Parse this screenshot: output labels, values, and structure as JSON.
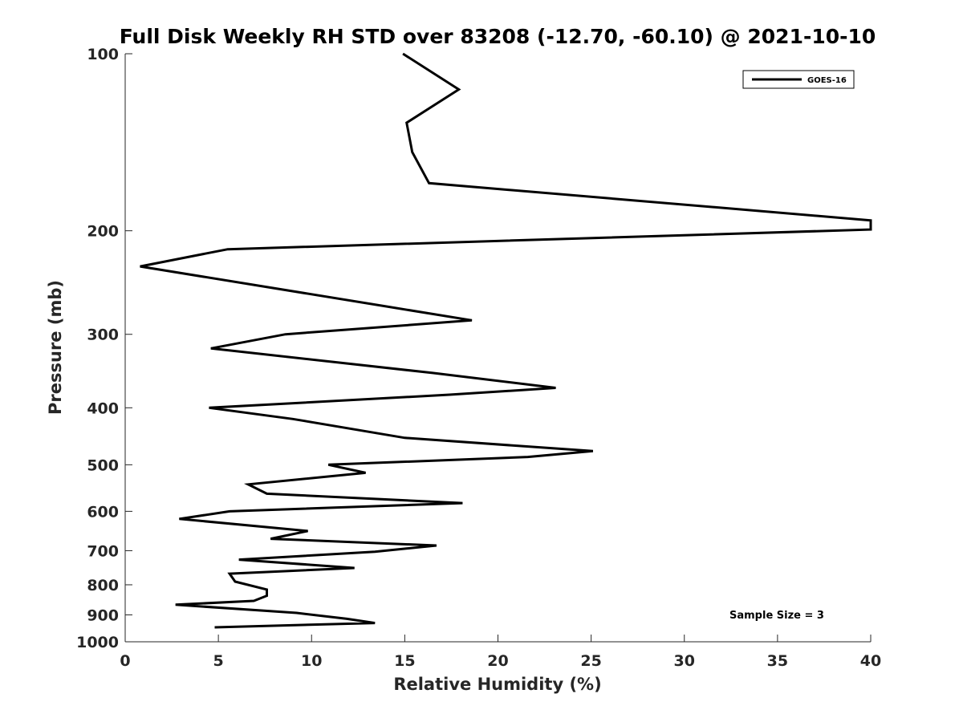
{
  "chart_data": {
    "type": "line",
    "title": "Full Disk Weekly RH STD over 83208 (-12.70, -60.10) @ 2021-10-10",
    "xlabel": "Relative Humidity (%)",
    "ylabel": "Pressure (mb)",
    "xlim": [
      0,
      40
    ],
    "ylim": [
      100,
      1000
    ],
    "y_scale": "log",
    "y_reversed": true,
    "x_ticks": [
      0,
      5,
      10,
      15,
      20,
      25,
      30,
      35,
      40
    ],
    "y_ticks": [
      100,
      200,
      300,
      400,
      500,
      600,
      700,
      800,
      900,
      1000
    ],
    "grid": false,
    "legend_position": "top-right",
    "annotation": "Sample Size = 3",
    "series": [
      {
        "name": "GOES-16",
        "color": "#000000",
        "x": [
          14.9,
          17.9,
          15.1,
          15.4,
          16.3,
          40.0,
          40.0,
          5.5,
          0.8,
          18.6,
          8.6,
          4.6,
          16.5,
          23.1,
          17.4,
          4.5,
          9.0,
          15.0,
          25.1,
          21.6,
          10.9,
          12.9,
          6.6,
          7.6,
          18.1,
          5.6,
          2.9,
          9.8,
          7.8,
          16.7,
          13.4,
          6.1,
          12.3,
          5.6,
          5.9,
          7.6,
          7.6,
          6.9,
          2.7,
          9.2,
          11.9,
          13.4,
          4.8
        ],
        "y": [
          100,
          115,
          131,
          147,
          166,
          192,
          199,
          215,
          230,
          284,
          300,
          317,
          349,
          370,
          380,
          400,
          418,
          450,
          474,
          485,
          500,
          516,
          540,
          560,
          581,
          600,
          618,
          648,
          668,
          686,
          703,
          725,
          749,
          766,
          790,
          815,
          835,
          852,
          865,
          893,
          914,
          929,
          945
        ]
      }
    ]
  }
}
